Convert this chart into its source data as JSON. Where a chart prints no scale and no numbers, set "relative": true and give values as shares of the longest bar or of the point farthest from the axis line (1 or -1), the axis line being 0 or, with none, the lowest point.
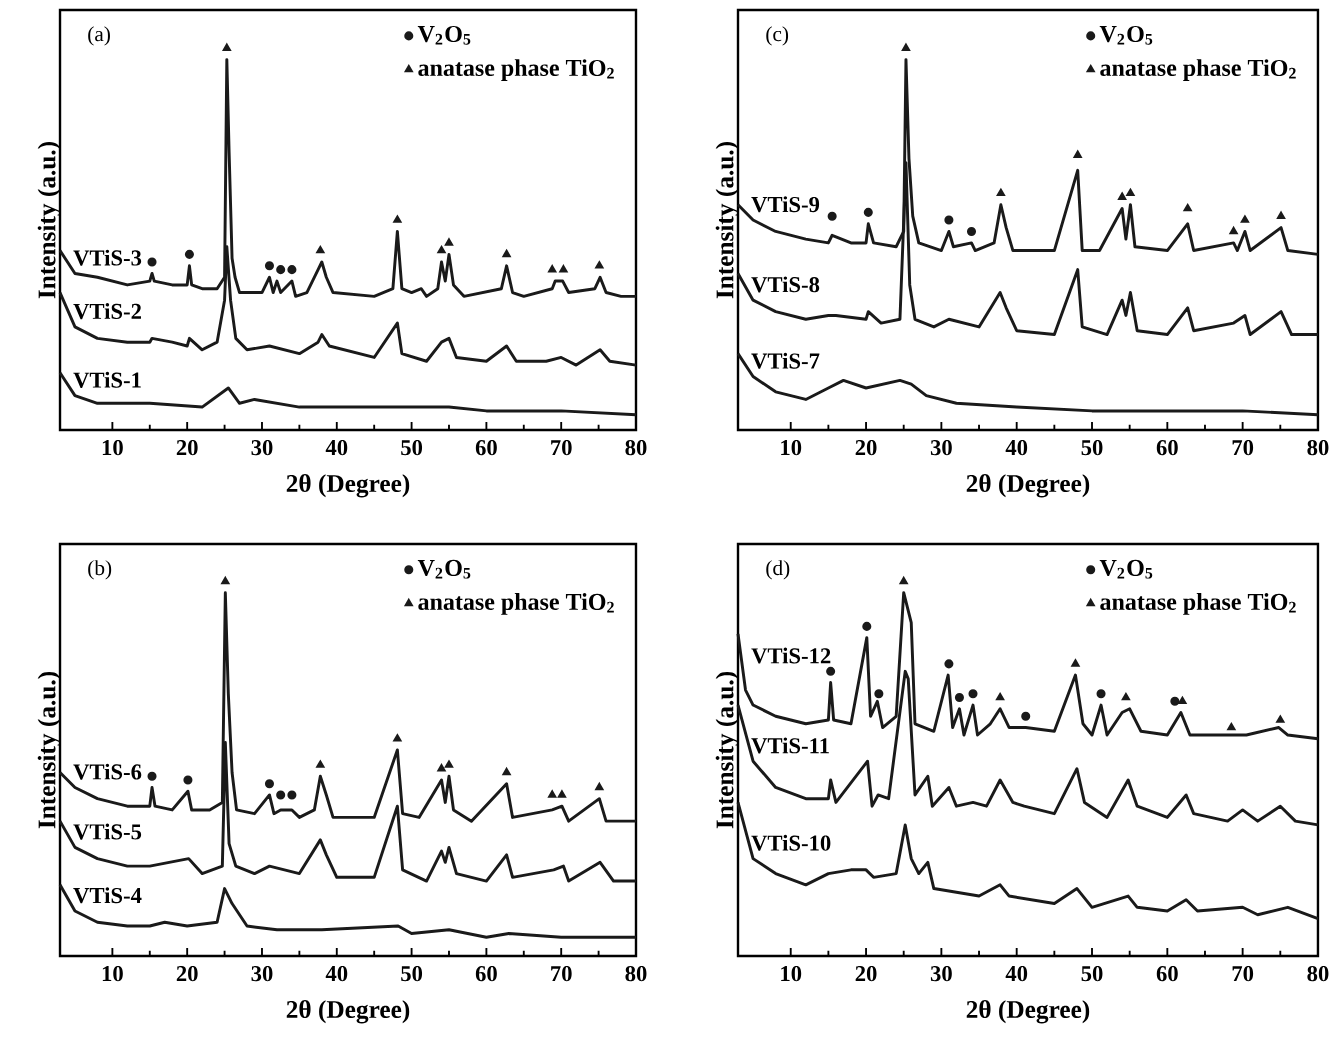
{
  "chart_data": [
    {
      "type": "line",
      "relative": true,
      "xlabel": "2θ (Degree)",
      "ylabel": "Intensity (a.u.)",
      "xlim": [
        3,
        80
      ],
      "xticks": [
        10,
        20,
        30,
        40,
        50,
        60,
        70,
        80
      ],
      "annotations": [
        "(a)"
      ],
      "legend": "top right",
      "series": [
        {
          "name": "VTiS-3",
          "color": "#1a1a1a",
          "x": [
            3,
            5,
            8,
            12,
            15,
            15.3,
            15.6,
            18,
            20,
            20.3,
            20.6,
            22,
            24,
            25,
            25.3,
            25.6,
            26,
            26.4,
            27,
            30,
            31,
            31.5,
            32,
            32.5,
            34,
            34.5,
            36,
            37.5,
            38,
            38.6,
            39.5,
            45,
            47.5,
            48.1,
            48.7,
            50,
            51.3,
            52,
            53.5,
            54,
            54.5,
            55,
            55.6,
            57,
            62,
            62.7,
            63.5,
            65,
            68.8,
            69.2,
            70.2,
            71,
            74.5,
            75.2,
            76,
            78,
            80
          ],
          "values": [
            0.47,
            0.41,
            0.4,
            0.38,
            0.39,
            0.41,
            0.39,
            0.38,
            0.38,
            0.43,
            0.38,
            0.37,
            0.37,
            0.4,
            0.97,
            0.73,
            0.45,
            0.4,
            0.36,
            0.36,
            0.4,
            0.36,
            0.39,
            0.36,
            0.39,
            0.35,
            0.36,
            0.42,
            0.44,
            0.4,
            0.36,
            0.35,
            0.37,
            0.52,
            0.37,
            0.36,
            0.37,
            0.35,
            0.37,
            0.44,
            0.39,
            0.46,
            0.38,
            0.35,
            0.37,
            0.43,
            0.36,
            0.35,
            0.37,
            0.39,
            0.39,
            0.36,
            0.37,
            0.4,
            0.36,
            0.35,
            0.35
          ]
        },
        {
          "name": "VTiS-2",
          "color": "#1a1a1a",
          "x": [
            3,
            5,
            8,
            12,
            15,
            15.3,
            18,
            20,
            20.3,
            22,
            24,
            25,
            25.3,
            25.8,
            26.5,
            28,
            31,
            35,
            37.5,
            38,
            39,
            45,
            48.1,
            48.7,
            52,
            54,
            55,
            56,
            60,
            62.7,
            64,
            68,
            70,
            72,
            75.2,
            76.5,
            80
          ],
          "values": [
            0.36,
            0.27,
            0.24,
            0.23,
            0.23,
            0.24,
            0.23,
            0.22,
            0.24,
            0.21,
            0.23,
            0.34,
            0.48,
            0.34,
            0.24,
            0.21,
            0.22,
            0.2,
            0.23,
            0.25,
            0.22,
            0.19,
            0.28,
            0.2,
            0.18,
            0.23,
            0.24,
            0.19,
            0.18,
            0.22,
            0.18,
            0.18,
            0.19,
            0.17,
            0.21,
            0.18,
            0.17
          ]
        },
        {
          "name": "VTiS-1",
          "color": "#1a1a1a",
          "x": [
            3,
            5,
            8,
            15,
            22,
            25.5,
            27,
            29,
            35,
            48.5,
            55,
            60,
            70,
            80
          ],
          "values": [
            0.15,
            0.09,
            0.07,
            0.07,
            0.06,
            0.11,
            0.07,
            0.08,
            0.06,
            0.06,
            0.06,
            0.05,
            0.05,
            0.04
          ]
        },
        {
          "name": "V$_{2}$O$_{5}$",
          "type": "scatter",
          "marker": "circle",
          "color": "#1a1a1a",
          "x": [
            15.3,
            20.3,
            31,
            32.5,
            34
          ],
          "values": [
            0.44,
            0.46,
            0.43,
            0.42,
            0.42
          ]
        },
        {
          "name": "anatase phase TiO$_{2}$",
          "type": "scatter",
          "marker": "triangle",
          "color": "#1a1a1a",
          "x": [
            25.3,
            37.8,
            48.1,
            54,
            55,
            62.7,
            68.8,
            70.3,
            75.1
          ],
          "values": [
            1.0,
            0.47,
            0.55,
            0.47,
            0.49,
            0.46,
            0.42,
            0.42,
            0.43
          ]
        }
      ]
    },
    {
      "type": "line",
      "relative": true,
      "xlabel": "2θ (Degree)",
      "ylabel": "Intensity (a.u.)",
      "xlim": [
        3,
        80
      ],
      "xticks": [
        10,
        20,
        30,
        40,
        50,
        60,
        70,
        80
      ],
      "annotations": [
        "(c)"
      ],
      "legend": "top right",
      "series": [
        {
          "name": "VTiS-9",
          "color": "#1a1a1a",
          "x": [
            3,
            5,
            8,
            12,
            15,
            15.5,
            18,
            20,
            20.3,
            21,
            24,
            25,
            25.3,
            25.7,
            26.2,
            27,
            30,
            31,
            31.6,
            34,
            34.5,
            37,
            37.9,
            38.6,
            39.5,
            45,
            48.1,
            48.7,
            51,
            54,
            54.5,
            55.1,
            55.7,
            60,
            62.7,
            63.5,
            68.8,
            69.3,
            70.3,
            71,
            75.1,
            76,
            80
          ],
          "values": [
            0.59,
            0.55,
            0.52,
            0.5,
            0.49,
            0.51,
            0.49,
            0.49,
            0.54,
            0.49,
            0.48,
            0.52,
            0.97,
            0.71,
            0.56,
            0.49,
            0.47,
            0.52,
            0.48,
            0.49,
            0.47,
            0.49,
            0.59,
            0.53,
            0.47,
            0.47,
            0.68,
            0.47,
            0.47,
            0.58,
            0.5,
            0.59,
            0.48,
            0.47,
            0.54,
            0.47,
            0.49,
            0.47,
            0.52,
            0.47,
            0.53,
            0.47,
            0.46
          ]
        },
        {
          "name": "VTiS-8",
          "color": "#1a1a1a",
          "x": [
            3,
            5,
            8,
            12,
            15,
            16,
            20,
            20.3,
            22,
            24.5,
            25.3,
            25.8,
            26.5,
            29,
            31,
            35,
            37.8,
            38.6,
            40,
            45,
            48.1,
            48.7,
            52,
            54,
            54.5,
            55.1,
            56,
            60,
            62.7,
            63.5,
            68.8,
            70.3,
            71,
            75.1,
            76.5,
            80
          ],
          "values": [
            0.41,
            0.34,
            0.31,
            0.29,
            0.3,
            0.3,
            0.29,
            0.31,
            0.28,
            0.29,
            0.7,
            0.38,
            0.29,
            0.27,
            0.29,
            0.27,
            0.36,
            0.32,
            0.26,
            0.25,
            0.42,
            0.27,
            0.25,
            0.34,
            0.3,
            0.36,
            0.26,
            0.25,
            0.32,
            0.26,
            0.28,
            0.3,
            0.25,
            0.31,
            0.25,
            0.25
          ]
        },
        {
          "name": "VTiS-7",
          "color": "#1a1a1a",
          "x": [
            3,
            5,
            8,
            12,
            15,
            17,
            20,
            24.5,
            26,
            28,
            32,
            40,
            50,
            60,
            70,
            80
          ],
          "values": [
            0.2,
            0.14,
            0.1,
            0.08,
            0.11,
            0.13,
            0.11,
            0.13,
            0.12,
            0.09,
            0.07,
            0.06,
            0.05,
            0.05,
            0.05,
            0.04
          ]
        },
        {
          "name": "V$_{2}$O$_{5}$",
          "type": "scatter",
          "marker": "circle",
          "color": "#1a1a1a",
          "x": [
            15.5,
            20.3,
            31,
            34
          ],
          "values": [
            0.56,
            0.57,
            0.55,
            0.52
          ]
        },
        {
          "name": "anatase phase TiO$_{2}$",
          "type": "scatter",
          "marker": "triangle",
          "color": "#1a1a1a",
          "x": [
            25.3,
            37.9,
            48.1,
            54,
            55.1,
            62.7,
            68.8,
            70.3,
            75.1
          ],
          "values": [
            1.0,
            0.62,
            0.72,
            0.61,
            0.62,
            0.58,
            0.52,
            0.55,
            0.56
          ]
        }
      ]
    },
    {
      "type": "line",
      "relative": true,
      "xlabel": "2θ (Degree)",
      "ylabel": "Intensity (a.u.)",
      "xlim": [
        3,
        80
      ],
      "xticks": [
        10,
        20,
        30,
        40,
        50,
        60,
        70,
        80
      ],
      "annotations": [
        "(b)"
      ],
      "legend": "top right",
      "series": [
        {
          "name": "VTiS-6",
          "color": "#1a1a1a",
          "x": [
            3,
            5,
            8,
            12,
            15,
            15.3,
            15.7,
            18,
            20.1,
            20.6,
            23,
            24.7,
            25.1,
            25.5,
            26,
            26.6,
            29,
            31,
            31.6,
            32.5,
            34,
            35,
            37,
            37.8,
            38.6,
            39.5,
            45,
            48.1,
            48.8,
            51,
            54,
            54.5,
            55,
            55.6,
            58,
            62.7,
            63.5,
            68.8,
            70.1,
            71,
            75.1,
            76,
            80
          ],
          "values": [
            0.49,
            0.45,
            0.42,
            0.4,
            0.4,
            0.45,
            0.4,
            0.39,
            0.44,
            0.39,
            0.39,
            0.41,
            0.97,
            0.7,
            0.49,
            0.39,
            0.38,
            0.43,
            0.38,
            0.39,
            0.39,
            0.37,
            0.39,
            0.48,
            0.43,
            0.37,
            0.37,
            0.55,
            0.38,
            0.37,
            0.47,
            0.41,
            0.48,
            0.39,
            0.36,
            0.46,
            0.37,
            0.39,
            0.4,
            0.36,
            0.42,
            0.36,
            0.36
          ]
        },
        {
          "name": "VTiS-5",
          "color": "#1a1a1a",
          "x": [
            3,
            5,
            8,
            12,
            15,
            20.2,
            22,
            24.7,
            25.1,
            25.6,
            26.5,
            29,
            31,
            35,
            37.8,
            38.6,
            40,
            45,
            48.1,
            48.8,
            52,
            54,
            54.5,
            55,
            56,
            60,
            62.7,
            63.5,
            69,
            70.3,
            71,
            75.2,
            77,
            80
          ],
          "values": [
            0.36,
            0.29,
            0.26,
            0.24,
            0.24,
            0.26,
            0.22,
            0.24,
            0.57,
            0.3,
            0.24,
            0.22,
            0.24,
            0.22,
            0.31,
            0.27,
            0.21,
            0.21,
            0.4,
            0.23,
            0.2,
            0.28,
            0.25,
            0.29,
            0.22,
            0.2,
            0.27,
            0.21,
            0.23,
            0.24,
            0.2,
            0.25,
            0.2,
            0.2
          ]
        },
        {
          "name": "VTiS-4",
          "color": "#1a1a1a",
          "x": [
            3,
            5,
            8,
            12,
            15,
            17,
            20,
            24,
            25,
            26,
            28,
            32,
            38,
            48.2,
            50,
            55,
            60,
            63,
            70,
            80
          ],
          "values": [
            0.19,
            0.12,
            0.09,
            0.08,
            0.08,
            0.09,
            0.08,
            0.09,
            0.18,
            0.14,
            0.08,
            0.07,
            0.07,
            0.08,
            0.06,
            0.07,
            0.05,
            0.06,
            0.05,
            0.05
          ]
        },
        {
          "name": "V$_{2}$O$_{5}$",
          "type": "scatter",
          "marker": "circle",
          "color": "#1a1a1a",
          "x": [
            15.3,
            20.1,
            31,
            32.5,
            34
          ],
          "values": [
            0.48,
            0.47,
            0.46,
            0.43,
            0.43
          ]
        },
        {
          "name": "anatase phase TiO$_{2}$",
          "type": "scatter",
          "marker": "triangle",
          "color": "#1a1a1a",
          "x": [
            25.1,
            37.8,
            48.1,
            54,
            55,
            62.7,
            68.8,
            70.1,
            75.1
          ],
          "values": [
            1.0,
            0.51,
            0.58,
            0.5,
            0.51,
            0.49,
            0.43,
            0.43,
            0.45
          ]
        }
      ]
    },
    {
      "type": "line",
      "relative": true,
      "xlabel": "2θ (Degree)",
      "ylabel": "Intensity (a.u.)",
      "xlim": [
        3,
        80
      ],
      "xticks": [
        10,
        20,
        30,
        40,
        50,
        60,
        70,
        80
      ],
      "annotations": [
        "(d)"
      ],
      "legend": "top right",
      "series": [
        {
          "name": "VTiS-12",
          "color": "#1a1a1a",
          "x": [
            3,
            4,
            5,
            8,
            12,
            15,
            15.3,
            15.7,
            18,
            20.1,
            20.6,
            21.5,
            22.2,
            24,
            25,
            25.5,
            26,
            26.5,
            29,
            30.9,
            31.5,
            32.4,
            33,
            34.2,
            34.8,
            36.5,
            37.8,
            39,
            41.2,
            45,
            47.8,
            48.8,
            50,
            51.2,
            52,
            54,
            55,
            56.5,
            60,
            61.8,
            63,
            68,
            70.5,
            74.8,
            76,
            80
          ],
          "values": [
            0.86,
            0.71,
            0.67,
            0.64,
            0.62,
            0.63,
            0.73,
            0.63,
            0.62,
            0.85,
            0.64,
            0.68,
            0.61,
            0.64,
            0.97,
            0.93,
            0.89,
            0.62,
            0.6,
            0.75,
            0.61,
            0.66,
            0.59,
            0.67,
            0.59,
            0.62,
            0.66,
            0.61,
            0.61,
            0.6,
            0.75,
            0.62,
            0.59,
            0.67,
            0.59,
            0.65,
            0.66,
            0.6,
            0.59,
            0.65,
            0.59,
            0.59,
            0.59,
            0.61,
            0.59,
            0.58
          ]
        },
        {
          "name": "VTiS-11",
          "color": "#1a1a1a",
          "x": [
            3,
            5,
            8,
            12,
            15,
            15.3,
            16,
            20.2,
            20.8,
            21.6,
            23,
            25.2,
            25.6,
            26.5,
            28.2,
            28.8,
            31,
            32,
            34.2,
            36,
            37.8,
            39.5,
            41,
            45,
            48,
            49,
            52,
            54.8,
            56,
            60,
            62.5,
            63.5,
            68,
            70,
            72,
            75,
            77,
            80
          ],
          "values": [
            0.67,
            0.52,
            0.45,
            0.42,
            0.42,
            0.47,
            0.41,
            0.52,
            0.4,
            0.43,
            0.42,
            0.76,
            0.74,
            0.43,
            0.48,
            0.4,
            0.45,
            0.4,
            0.41,
            0.4,
            0.47,
            0.41,
            0.4,
            0.38,
            0.5,
            0.41,
            0.37,
            0.47,
            0.4,
            0.37,
            0.43,
            0.38,
            0.36,
            0.39,
            0.36,
            0.4,
            0.36,
            0.35
          ]
        },
        {
          "name": "VTiS-10",
          "color": "#1a1a1a",
          "x": [
            3,
            5,
            8,
            12,
            15,
            18,
            20,
            21,
            24,
            25.2,
            26,
            27,
            28.2,
            29,
            32,
            35,
            37.8,
            39,
            45,
            48,
            50,
            54.8,
            56,
            60,
            62.5,
            64,
            70,
            72,
            76,
            80
          ],
          "values": [
            0.41,
            0.26,
            0.22,
            0.19,
            0.22,
            0.23,
            0.23,
            0.21,
            0.22,
            0.35,
            0.26,
            0.22,
            0.25,
            0.18,
            0.17,
            0.16,
            0.19,
            0.16,
            0.14,
            0.18,
            0.13,
            0.16,
            0.13,
            0.12,
            0.15,
            0.12,
            0.13,
            0.11,
            0.13,
            0.1
          ]
        },
        {
          "name": "V$_{2}$O$_{5}$",
          "type": "scatter",
          "marker": "circle",
          "color": "#1a1a1a",
          "x": [
            15.3,
            20.1,
            21.7,
            31,
            32.4,
            34.2,
            41.2,
            51.2,
            61
          ],
          "values": [
            0.76,
            0.88,
            0.7,
            0.78,
            0.69,
            0.7,
            0.64,
            0.7,
            0.68
          ]
        },
        {
          "name": "anatase phase TiO$_{2}$",
          "type": "scatter",
          "marker": "triangle",
          "color": "#1a1a1a",
          "x": [
            25,
            37.8,
            47.8,
            54.5,
            62,
            68.5,
            75
          ],
          "values": [
            1.0,
            0.69,
            0.78,
            0.69,
            0.68,
            0.61,
            0.63
          ]
        }
      ]
    }
  ]
}
